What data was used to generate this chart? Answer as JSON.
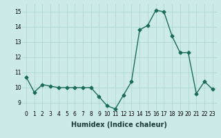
{
  "x": [
    0,
    1,
    2,
    3,
    4,
    5,
    6,
    7,
    8,
    9,
    10,
    11,
    12,
    13,
    14,
    15,
    16,
    17,
    18,
    19,
    20,
    21,
    22,
    23
  ],
  "y": [
    10.7,
    9.7,
    10.2,
    10.1,
    10.0,
    10.0,
    10.0,
    10.0,
    10.0,
    9.4,
    8.8,
    8.6,
    9.5,
    10.4,
    13.8,
    14.1,
    15.1,
    15.0,
    13.4,
    12.3,
    12.3,
    9.6,
    10.4,
    9.9
  ],
  "xlabel": "Humidex (Indice chaleur)",
  "ylim": [
    8.5,
    15.5
  ],
  "xlim": [
    -0.5,
    23.5
  ],
  "yticks": [
    9,
    10,
    11,
    12,
    13,
    14,
    15
  ],
  "xticks": [
    0,
    1,
    2,
    3,
    4,
    5,
    6,
    7,
    8,
    9,
    10,
    11,
    12,
    13,
    14,
    15,
    16,
    17,
    18,
    19,
    20,
    21,
    22,
    23
  ],
  "line_color": "#1a6b5a",
  "bg_color": "#cceae7",
  "grid_color": "#b0d8d4",
  "marker": "D",
  "marker_size": 2.5,
  "line_width": 1.0,
  "tick_fontsize": 5.5,
  "xlabel_fontsize": 7.0
}
